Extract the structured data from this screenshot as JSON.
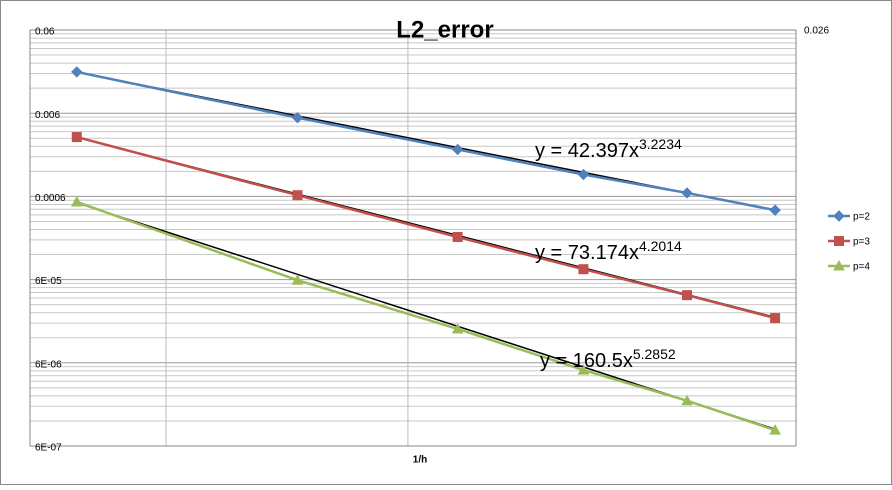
{
  "chart_data": {
    "type": "line",
    "title": "L2_error",
    "x_label": "1/h",
    "corner_label": "0.026",
    "log_x": true,
    "log_y": true,
    "grid": true,
    "legend": "right",
    "x": [
      11,
      16,
      21,
      26,
      31,
      36
    ],
    "xlim": [
      10.16,
      37.3
    ],
    "x_gridlines": [
      12.8,
      19.3
    ],
    "ylim": [
      6e-07,
      0.06
    ],
    "yticks": [
      {
        "value": 6e-07,
        "label": "6E-07"
      },
      {
        "value": 6e-06,
        "label": "6E-06"
      },
      {
        "value": 6e-05,
        "label": "6E-05"
      },
      0.0006,
      0.006,
      0.06
    ],
    "series": [
      {
        "name": "p=2",
        "color": "#4f81bd",
        "marker": "diamond",
        "values": [
          0.0188,
          0.0053,
          0.0022,
          0.0011,
          0.00066,
          0.00041
        ]
      },
      {
        "name": "p=3",
        "color": "#c0504d",
        "marker": "square",
        "values": [
          0.0031,
          0.00062,
          0.000195,
          8e-05,
          3.9e-05,
          2.07e-05
        ]
      },
      {
        "name": "p=4",
        "color": "#9bbb59",
        "marker": "triangle",
        "values": [
          0.000514,
          5.9e-05,
          1.53e-05,
          4.9e-06,
          2.1e-06,
          9.3e-07
        ]
      }
    ],
    "trendlines": [
      {
        "label": "y = 42.397x",
        "exponent_label": "3.2234",
        "coefficient": 42.397,
        "exponent": 3.2234
      },
      {
        "label": "y = 73.174x",
        "exponent_label": "4.2014",
        "coefficient": 73.174,
        "exponent": 4.2014
      },
      {
        "label": "y = 160.5x",
        "exponent_label": "5.2852",
        "coefficient": 160.5,
        "exponent": 5.2852
      }
    ]
  }
}
